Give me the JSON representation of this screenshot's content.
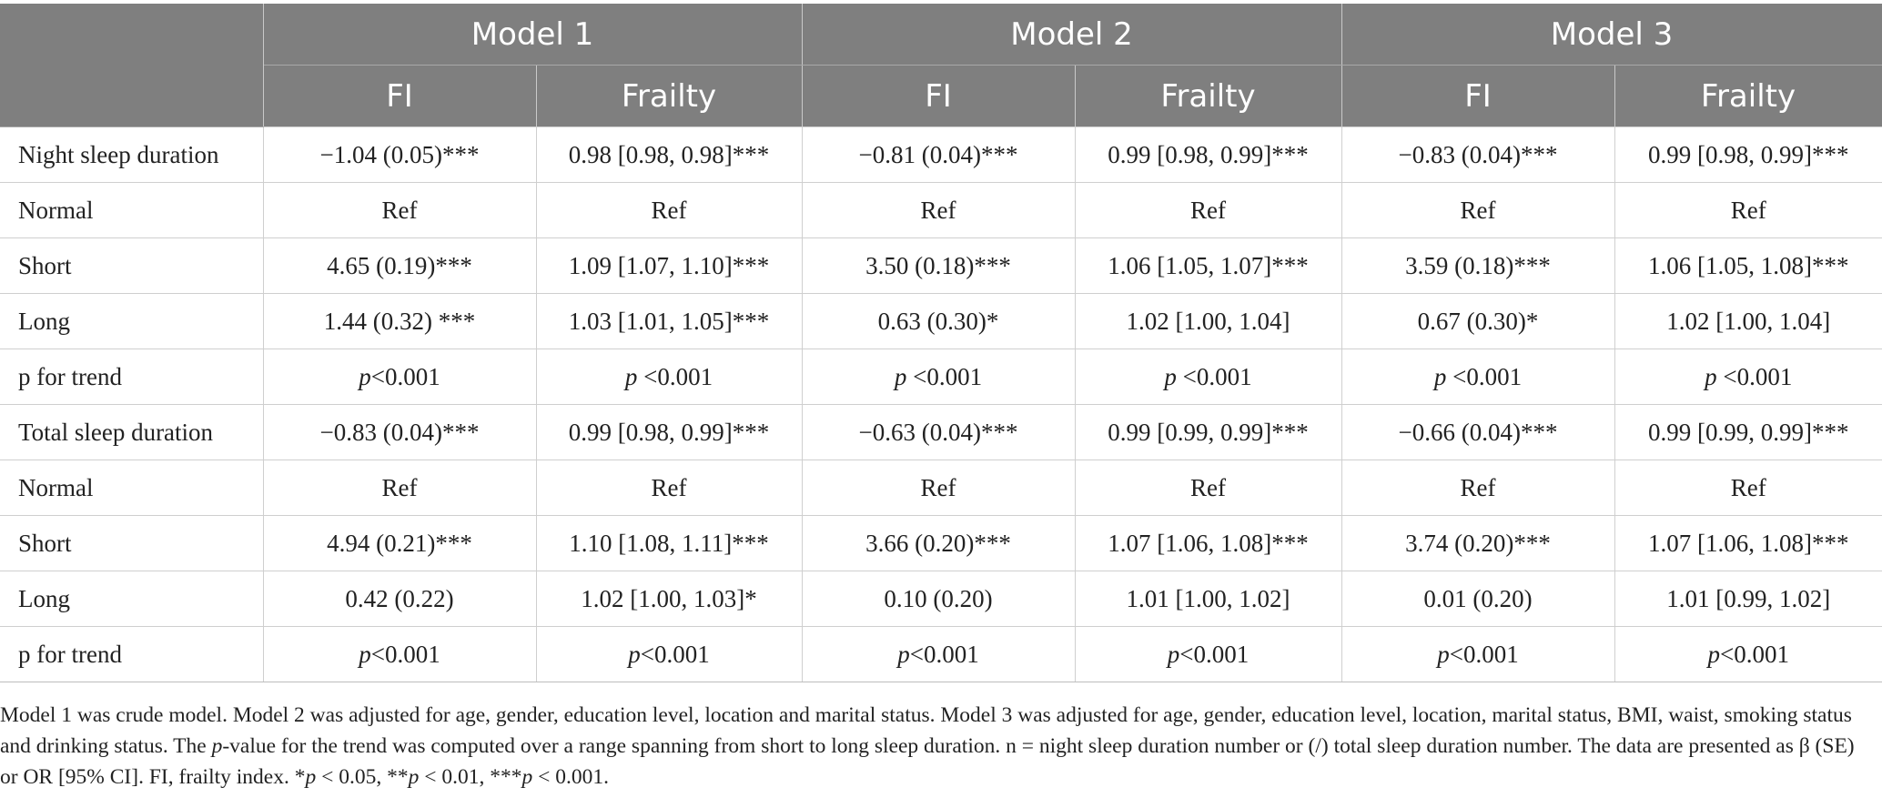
{
  "header": {
    "model_row": [
      "Model 1",
      "Model 2",
      "Model 3"
    ],
    "sub_row": [
      "FI",
      "Frailty",
      "FI",
      "Frailty",
      "FI",
      "Frailty"
    ]
  },
  "rows": [
    {
      "label": "Night sleep duration",
      "cells": [
        "−1.04 (0.05)***",
        "0.98 [0.98, 0.98]***",
        "−0.81 (0.04)***",
        "0.99 [0.98, 0.99]***",
        "−0.83 (0.04)***",
        "0.99 [0.98, 0.99]***"
      ]
    },
    {
      "label": "Normal",
      "cells": [
        "Ref",
        "Ref",
        "Ref",
        "Ref",
        "Ref",
        "Ref"
      ]
    },
    {
      "label": "Short",
      "cells": [
        "4.65 (0.19)***",
        "1.09 [1.07, 1.10]***",
        "3.50 (0.18)***",
        "1.06 [1.05, 1.07]***",
        "3.59 (0.18)***",
        "1.06 [1.05, 1.08]***"
      ]
    },
    {
      "label": "Long",
      "cells": [
        "1.44 (0.32) ***",
        "1.03 [1.01, 1.05]***",
        "0.63 (0.30)*",
        "1.02 [1.00, 1.04]",
        "0.67 (0.30)*",
        "1.02 [1.00, 1.04]"
      ]
    },
    {
      "label": "p for trend",
      "ptrend": true,
      "cells": [
        "<0.001",
        " <0.001",
        " <0.001",
        " <0.001",
        " <0.001",
        " <0.001"
      ]
    },
    {
      "label": "Total sleep duration",
      "cells": [
        "−0.83 (0.04)***",
        "0.99 [0.98, 0.99]***",
        "−0.63 (0.04)***",
        "0.99 [0.99, 0.99]***",
        "−0.66 (0.04)***",
        "0.99 [0.99, 0.99]***"
      ]
    },
    {
      "label": "Normal",
      "cells": [
        "Ref",
        "Ref",
        "Ref",
        "Ref",
        "Ref",
        "Ref"
      ]
    },
    {
      "label": "Short",
      "cells": [
        "4.94 (0.21)***",
        "1.10 [1.08, 1.11]***",
        "3.66 (0.20)***",
        "1.07 [1.06, 1.08]***",
        "3.74 (0.20)***",
        "1.07 [1.06, 1.08]***"
      ]
    },
    {
      "label": "Long",
      "cells": [
        "0.42 (0.22)",
        "1.02 [1.00, 1.03]*",
        "0.10 (0.20)",
        "1.01 [1.00, 1.02]",
        "0.01 (0.20)",
        "1.01 [0.99, 1.02]"
      ]
    },
    {
      "label": "p for trend",
      "ptrend": true,
      "cells": [
        "<0.001",
        "<0.001",
        "<0.001",
        "<0.001",
        "<0.001",
        "<0.001"
      ]
    }
  ],
  "ptrend_italic": "p",
  "footnote": [
    {
      "t": "Model 1 was crude model. Model 2 was adjusted for age, gender, education level, location and marital status. Model 3 was adjusted for age, gender, education level, location, marital status, BMI, waist, smoking status and drinking status. The "
    },
    {
      "t": "p",
      "i": true
    },
    {
      "t": "-value for the trend was computed over a range spanning from short to long sleep duration. n = night sleep duration number or (/) total sleep duration number. The data are presented as β (SE) or OR [95% CI]. FI, frailty index. *"
    },
    {
      "t": "p",
      "i": true
    },
    {
      "t": " < 0.05, **"
    },
    {
      "t": "p",
      "i": true
    },
    {
      "t": " < 0.01, ***"
    },
    {
      "t": "p",
      "i": true
    },
    {
      "t": " < 0.001."
    }
  ]
}
